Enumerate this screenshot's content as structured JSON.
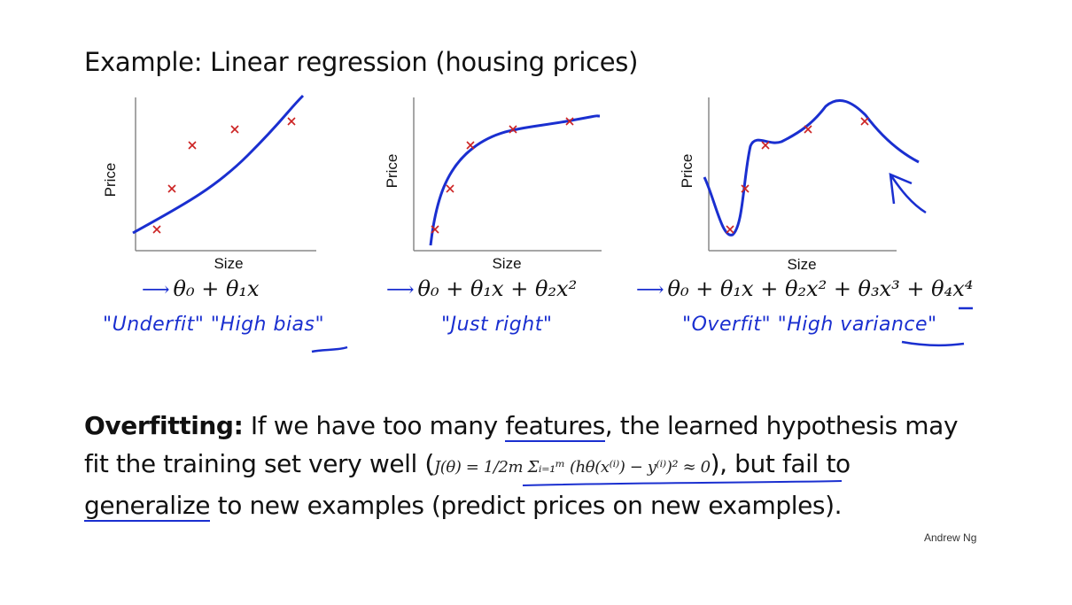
{
  "title": "Example: Linear regression (housing prices)",
  "plots": [
    {
      "xlabel": "Size",
      "ylabel": "Price",
      "equation": "θ₀ + θ₁x",
      "annotation": "\"Underfit\"  \"High bias\""
    },
    {
      "xlabel": "Size",
      "ylabel": "Price",
      "equation": "θ₀ + θ₁x + θ₂x²",
      "annotation": "\"Just right\""
    },
    {
      "xlabel": "Size",
      "ylabel": "Price",
      "equation": "θ₀ + θ₁x + θ₂x² + θ₃x³ + θ₄x⁴",
      "annotation": "\"Overfit\"  \"High variance\""
    }
  ],
  "paragraph": {
    "term": "Overfitting:",
    "text1": " If we have too many ",
    "features": "features",
    "text2": ", the learned hypothesis may fit the training set very well (",
    "formula": "J(θ) = 1/2m Σᵢ₌₁ᵐ (hθ(x⁽ⁱ⁾) − y⁽ⁱ⁾)² ≈ 0",
    "text3": "), but fail to ",
    "generalize": "generalize",
    "text4": " to new examples (predict prices on new examples)."
  },
  "author": "Andrew Ng",
  "colors": {
    "ink": "#1a2fd0",
    "marker": "#cc2222",
    "axis": "#888888"
  }
}
